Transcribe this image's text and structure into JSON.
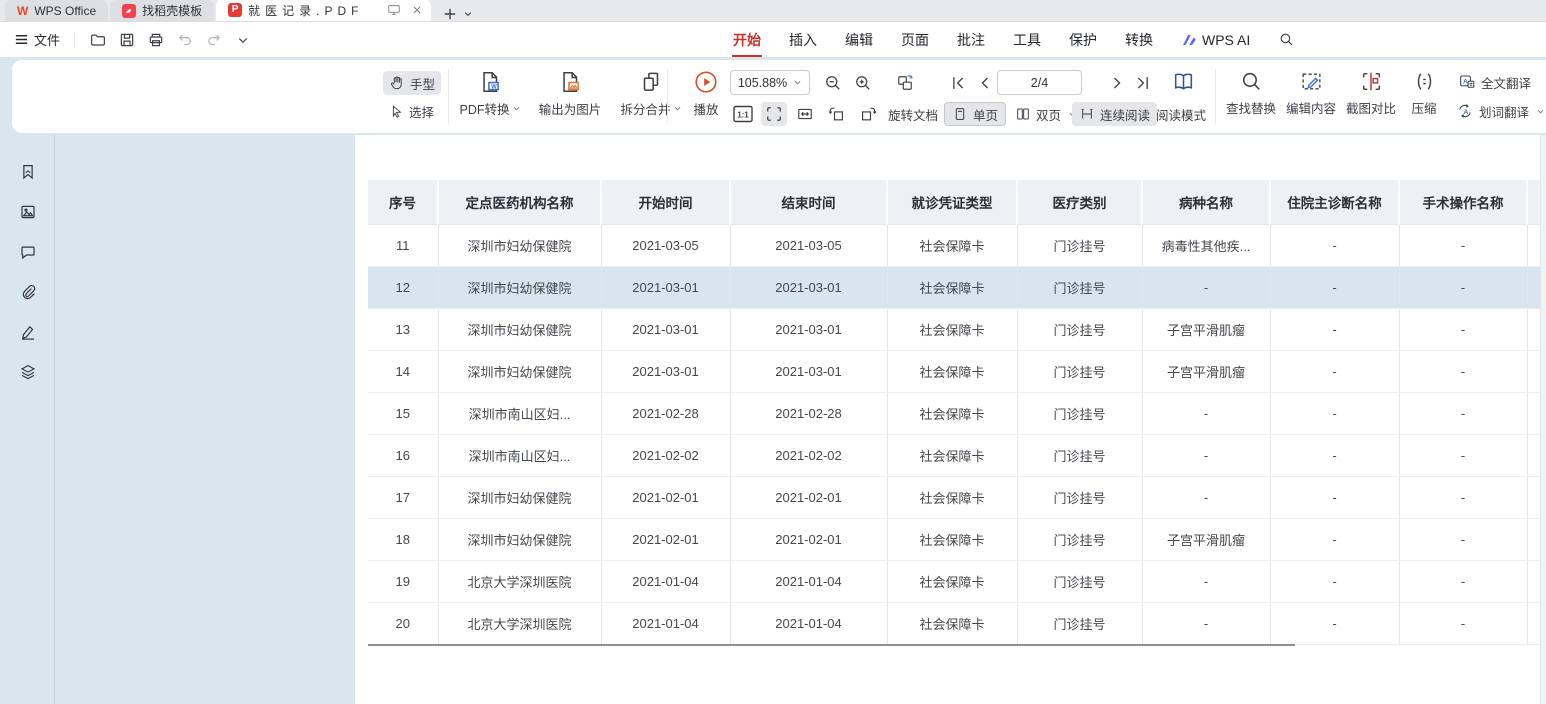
{
  "tabbar": {
    "tabs": [
      {
        "label": "WPS Office"
      },
      {
        "label": "找稻壳模板"
      },
      {
        "label": "就医记录.PDF"
      }
    ]
  },
  "menu": {
    "file_label": "文件"
  },
  "ribbon": {
    "tabs": [
      {
        "label": "开始",
        "active": true
      },
      {
        "label": "插入"
      },
      {
        "label": "编辑"
      },
      {
        "label": "页面"
      },
      {
        "label": "批注"
      },
      {
        "label": "工具"
      },
      {
        "label": "保护"
      },
      {
        "label": "转换"
      }
    ],
    "ai_label": "WPS AI"
  },
  "toolbar": {
    "hand": "手型",
    "select": "选择",
    "pdf_convert": "PDF转换",
    "export_image": "输出为图片",
    "split_merge": "拆分合并",
    "play": "播放",
    "zoom_value": "105.88%",
    "one_to_one": "1:1",
    "rotate_doc": "旋转文档",
    "single_page": "单页",
    "double_page": "双页",
    "continuous": "连续阅读",
    "read_mode": "阅读模式",
    "page_value": "2/4",
    "find_replace": "查找替换",
    "edit_content": "编辑内容",
    "screenshot_compare": "截图对比",
    "compress": "压缩",
    "full_translate": "全文翻译",
    "word_translate": "划词翻译"
  },
  "rail_icons": [
    "bookmark",
    "thumbnail",
    "comment",
    "attachment",
    "signature",
    "layers"
  ],
  "table": {
    "headers": [
      "序号",
      "定点医药机构名称",
      "开始时间",
      "结束时间",
      "就诊凭证类型",
      "医疗类别",
      "病种名称",
      "住院主诊断名称",
      "手术操作名称"
    ],
    "rows": [
      [
        "11",
        "深圳市妇幼保健院",
        "2021-03-05",
        "2021-03-05",
        "社会保障卡",
        "门诊挂号",
        "病毒性其他疾...",
        "-",
        "-"
      ],
      [
        "12",
        "深圳市妇幼保健院",
        "2021-03-01",
        "2021-03-01",
        "社会保障卡",
        "门诊挂号",
        "-",
        "-",
        "-"
      ],
      [
        "13",
        "深圳市妇幼保健院",
        "2021-03-01",
        "2021-03-01",
        "社会保障卡",
        "门诊挂号",
        "子宫平滑肌瘤",
        "-",
        "-"
      ],
      [
        "14",
        "深圳市妇幼保健院",
        "2021-03-01",
        "2021-03-01",
        "社会保障卡",
        "门诊挂号",
        "子宫平滑肌瘤",
        "-",
        "-"
      ],
      [
        "15",
        "深圳市南山区妇...",
        "2021-02-28",
        "2021-02-28",
        "社会保障卡",
        "门诊挂号",
        "-",
        "-",
        "-"
      ],
      [
        "16",
        "深圳市南山区妇...",
        "2021-02-02",
        "2021-02-02",
        "社会保障卡",
        "门诊挂号",
        "-",
        "-",
        "-"
      ],
      [
        "17",
        "深圳市妇幼保健院",
        "2021-02-01",
        "2021-02-01",
        "社会保障卡",
        "门诊挂号",
        "-",
        "-",
        "-"
      ],
      [
        "18",
        "深圳市妇幼保健院",
        "2021-02-01",
        "2021-02-01",
        "社会保障卡",
        "门诊挂号",
        "子宫平滑肌瘤",
        "-",
        "-"
      ],
      [
        "19",
        "北京大学深圳医院",
        "2021-01-04",
        "2021-01-04",
        "社会保障卡",
        "门诊挂号",
        "-",
        "-",
        "-"
      ],
      [
        "20",
        "北京大学深圳医院",
        "2021-01-04",
        "2021-01-04",
        "社会保障卡",
        "门诊挂号",
        "-",
        "-",
        "-"
      ]
    ],
    "highlighted_row": "12"
  },
  "colors": {
    "accent_red": "#c5322a",
    "accent_blue": "#3b6fd4",
    "row_highlight": "#d8e4f0",
    "header_bg": "#edf0f4",
    "workspace_bg": "#d9e6ee"
  }
}
